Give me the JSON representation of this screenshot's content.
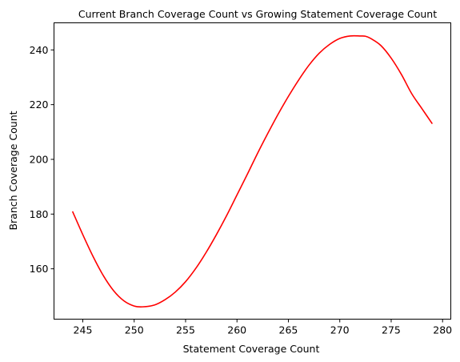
{
  "chart_data": {
    "type": "line",
    "title": "Current Branch Coverage Count vs Growing Statement Coverage Count",
    "xlabel": "Statement Coverage Count",
    "ylabel": "Branch Coverage Count",
    "xlim": [
      242.2,
      280.8
    ],
    "ylim": [
      141.6,
      249.9
    ],
    "xticks": [
      245,
      250,
      255,
      260,
      265,
      270,
      275,
      280
    ],
    "yticks": [
      160,
      180,
      200,
      220,
      240
    ],
    "grid": false,
    "legend": "none",
    "series": [
      {
        "color": "#ff0000",
        "x": [
          244,
          245,
          246,
          247,
          248,
          249,
          250,
          250.8,
          252,
          253,
          254,
          255,
          256,
          257,
          258,
          259,
          260,
          261,
          262,
          263,
          264,
          265,
          266,
          267,
          268,
          269,
          270,
          271,
          272,
          272.5,
          273,
          274,
          275,
          276,
          277,
          278,
          279
        ],
        "y": [
          181,
          172.5,
          164.5,
          157.5,
          152,
          148.3,
          146.4,
          146.1,
          146.8,
          148.7,
          151.5,
          155.3,
          160.2,
          166,
          172.5,
          179.5,
          187,
          194.5,
          202.2,
          209.5,
          216.5,
          223,
          229,
          234.4,
          238.8,
          242,
          244.2,
          245.1,
          245.1,
          245,
          244.2,
          241.6,
          237,
          231,
          224,
          218.5,
          213
        ]
      }
    ]
  }
}
